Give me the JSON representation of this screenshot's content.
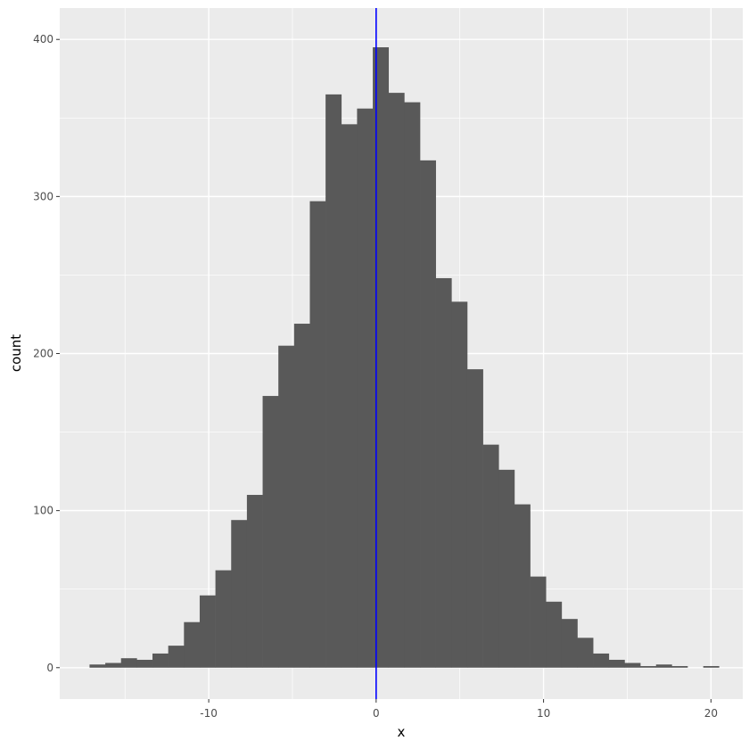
{
  "chart_data": {
    "type": "bar",
    "subtype": "histogram",
    "xlabel": "x",
    "ylabel": "count",
    "xlim": [
      -18.9,
      21.9
    ],
    "ylim": [
      -20,
      420
    ],
    "x_ticks": [
      -10,
      0,
      10,
      20
    ],
    "x_tick_labels": [
      "-10",
      "0",
      "10",
      "20"
    ],
    "y_ticks": [
      0,
      100,
      200,
      300,
      400
    ],
    "y_tick_labels": [
      "0",
      "100",
      "200",
      "300",
      "400"
    ],
    "bin_width": 0.94,
    "bins": [
      {
        "x0": -17.12,
        "x1": -16.18,
        "count": 2
      },
      {
        "x0": -16.18,
        "x1": -15.24,
        "count": 3
      },
      {
        "x0": -15.24,
        "x1": -14.3,
        "count": 6
      },
      {
        "x0": -14.3,
        "x1": -13.36,
        "count": 5
      },
      {
        "x0": -13.36,
        "x1": -12.42,
        "count": 9
      },
      {
        "x0": -12.42,
        "x1": -11.48,
        "count": 14
      },
      {
        "x0": -11.48,
        "x1": -10.54,
        "count": 29
      },
      {
        "x0": -10.54,
        "x1": -9.6,
        "count": 46
      },
      {
        "x0": -9.6,
        "x1": -8.66,
        "count": 62
      },
      {
        "x0": -8.66,
        "x1": -7.72,
        "count": 94
      },
      {
        "x0": -7.72,
        "x1": -6.78,
        "count": 110
      },
      {
        "x0": -6.78,
        "x1": -5.84,
        "count": 173
      },
      {
        "x0": -5.84,
        "x1": -4.9,
        "count": 205
      },
      {
        "x0": -4.9,
        "x1": -3.96,
        "count": 219
      },
      {
        "x0": -3.96,
        "x1": -3.02,
        "count": 297
      },
      {
        "x0": -3.02,
        "x1": -2.08,
        "count": 365
      },
      {
        "x0": -2.08,
        "x1": -1.14,
        "count": 346
      },
      {
        "x0": -1.14,
        "x1": -0.2,
        "count": 356
      },
      {
        "x0": -0.2,
        "x1": 0.74,
        "count": 395
      },
      {
        "x0": 0.74,
        "x1": 1.68,
        "count": 366
      },
      {
        "x0": 1.68,
        "x1": 2.62,
        "count": 360
      },
      {
        "x0": 2.62,
        "x1": 3.56,
        "count": 323
      },
      {
        "x0": 3.56,
        "x1": 4.5,
        "count": 248
      },
      {
        "x0": 4.5,
        "x1": 5.44,
        "count": 233
      },
      {
        "x0": 5.44,
        "x1": 6.38,
        "count": 190
      },
      {
        "x0": 6.38,
        "x1": 7.32,
        "count": 142
      },
      {
        "x0": 7.32,
        "x1": 8.26,
        "count": 126
      },
      {
        "x0": 8.26,
        "x1": 9.2,
        "count": 104
      },
      {
        "x0": 9.2,
        "x1": 10.14,
        "count": 58
      },
      {
        "x0": 10.14,
        "x1": 11.08,
        "count": 42
      },
      {
        "x0": 11.08,
        "x1": 12.02,
        "count": 31
      },
      {
        "x0": 12.02,
        "x1": 12.96,
        "count": 19
      },
      {
        "x0": 12.96,
        "x1": 13.9,
        "count": 9
      },
      {
        "x0": 13.9,
        "x1": 14.84,
        "count": 5
      },
      {
        "x0": 14.84,
        "x1": 15.78,
        "count": 3
      },
      {
        "x0": 15.78,
        "x1": 16.72,
        "count": 1
      },
      {
        "x0": 16.72,
        "x1": 17.66,
        "count": 2
      },
      {
        "x0": 17.66,
        "x1": 18.6,
        "count": 1
      },
      {
        "x0": 18.6,
        "x1": 19.54,
        "count": 0
      },
      {
        "x0": 19.54,
        "x1": 20.48,
        "count": 1
      }
    ],
    "vline": {
      "x": 0,
      "color": "#0000ff"
    },
    "grid": true,
    "legend": "none"
  },
  "colors": {
    "panel_background": "#ebebeb",
    "grid_major": "#ffffff",
    "bar_fill": "#595959",
    "tick_text": "#4d4d4d"
  }
}
